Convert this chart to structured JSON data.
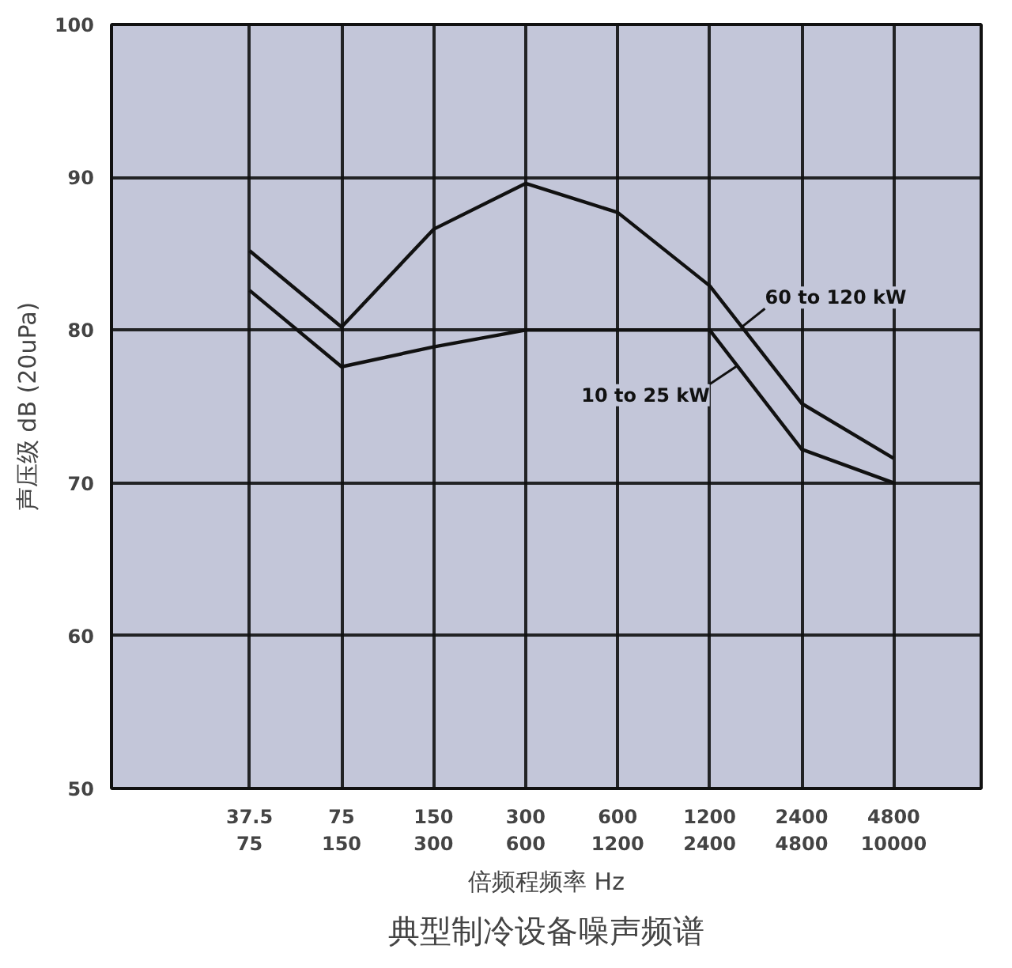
{
  "chart_data": {
    "type": "line",
    "title": "典型制冷设备噪声频谱",
    "xlabel": "倍频程频率 Hz",
    "ylabel": "声压级 dB (20uPa)",
    "categories": [
      "37.5\n75",
      "75\n150",
      "150\n300",
      "300\n600",
      "600\n1200",
      "1200\n2400",
      "2400\n4800",
      "4800\n10000"
    ],
    "series": [
      {
        "name": "60 to 120 kW",
        "color": "#111111",
        "values": [
          85.2,
          80.2,
          86.6,
          89.6,
          87.7,
          82.9,
          75.2,
          71.6
        ]
      },
      {
        "name": "10 to 25 kW",
        "color": "#111111",
        "values": [
          82.6,
          77.6,
          78.9,
          80,
          80,
          80,
          72.2,
          70
        ]
      }
    ],
    "ylim": [
      50,
      100
    ],
    "yticks": [
      50,
      60,
      70,
      80,
      90,
      100
    ],
    "grid": true,
    "marker": "none",
    "line_style": "solid"
  }
}
